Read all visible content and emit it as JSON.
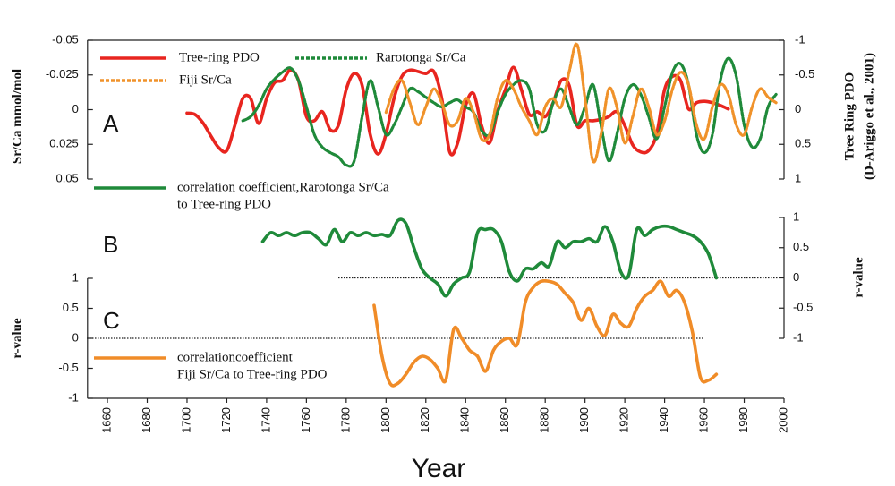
{
  "chart_data": [
    {
      "type": "line",
      "label": "A",
      "y_axis_side": "left",
      "ylabel": "Sr/Ca  mmol/mol",
      "y2label": [
        "Tree Ring PDO",
        "(D-Ariggo et al., 2001)"
      ],
      "ylim": [
        0.05,
        -0.05
      ],
      "yticks": [
        -0.05,
        -0.025,
        0,
        0.025,
        0.05
      ],
      "y2lim": [
        1,
        -1
      ],
      "y2ticks": [
        -1,
        -0.5,
        0,
        0.5,
        1
      ],
      "x": [
        1700,
        1704,
        1708,
        1712,
        1716,
        1720,
        1724,
        1728,
        1732,
        1736,
        1740,
        1744,
        1748,
        1752,
        1756,
        1760,
        1764,
        1768,
        1772,
        1776,
        1780,
        1784,
        1788,
        1792,
        1796,
        1800,
        1804,
        1808,
        1812,
        1816,
        1820,
        1824,
        1828,
        1832,
        1836,
        1840,
        1844,
        1848,
        1852,
        1856,
        1860,
        1864,
        1868,
        1872,
        1876,
        1880,
        1884,
        1888,
        1892,
        1896,
        1900,
        1904,
        1908,
        1912,
        1916,
        1920,
        1924,
        1928,
        1932,
        1936,
        1940,
        1944,
        1948,
        1952,
        1956,
        1960,
        1964,
        1968,
        1972,
        1976,
        1980,
        1984,
        1988,
        1992,
        1996
      ],
      "series": [
        {
          "name": "Tree-ring PDO",
          "color": "#e8251f",
          "style": "solid",
          "axis": "y2",
          "values": [
            0.05,
            0.07,
            0.19,
            0.38,
            0.55,
            0.59,
            0.23,
            -0.16,
            -0.16,
            0.2,
            -0.16,
            -0.39,
            -0.42,
            -0.57,
            -0.42,
            0.1,
            0.16,
            0.03,
            0.29,
            0.23,
            -0.29,
            -0.52,
            -0.35,
            0.35,
            0.64,
            0.35,
            -0.16,
            -0.48,
            -0.57,
            -0.55,
            -0.52,
            -0.55,
            -0.16,
            0.61,
            0.48,
            -0.06,
            -0.23,
            0.23,
            0.48,
            0.03,
            -0.29,
            -0.61,
            -0.29,
            0.07,
            0.03,
            0.1,
            -0.1,
            -0.42,
            -0.35,
            0.23,
            0.16,
            0.16,
            0.14,
            0.1,
            0.03,
            0.23,
            0.51,
            0.61,
            0.59,
            0.35,
            -0.29,
            -0.48,
            -0.42,
            -0.01,
            -0.1,
            -0.12,
            -0.1,
            -0.06,
            -0.01,
            null,
            null,
            null,
            null,
            null,
            null
          ]
        },
        {
          "name": "Rarotonga Sr/Ca",
          "color": "#1f8a3a",
          "style": "dashed",
          "values": [
            null,
            null,
            null,
            null,
            null,
            null,
            null,
            0.008,
            0.005,
            -0.003,
            -0.015,
            -0.022,
            -0.027,
            -0.03,
            -0.021,
            -0.002,
            0.018,
            0.027,
            0.031,
            0.034,
            0.04,
            0.037,
            0.005,
            -0.021,
            -0.002,
            0.018,
            0.011,
            -0.002,
            -0.015,
            -0.013,
            -0.009,
            -0.005,
            -0.002,
            -0.005,
            -0.007,
            -0.002,
            0.002,
            0.015,
            0.018,
            0.002,
            -0.011,
            -0.018,
            -0.021,
            -0.015,
            0.011,
            0.015,
            -0.005,
            -0.015,
            -0.002,
            0.011,
            -0.002,
            -0.018,
            0.011,
            0.037,
            0.018,
            -0.008,
            -0.018,
            -0.011,
            0.005,
            0.021,
            -0.002,
            -0.027,
            -0.033,
            -0.018,
            0.018,
            0.031,
            0.018,
            -0.021,
            -0.037,
            -0.024,
            0.011,
            0.027,
            0.021,
            -0.002,
            -0.011
          ]
        },
        {
          "name": "Fiji Sr/Ca",
          "color": "#f0922a",
          "style": "dashed",
          "values": [
            null,
            null,
            null,
            null,
            null,
            null,
            null,
            null,
            null,
            null,
            null,
            null,
            null,
            null,
            null,
            null,
            null,
            null,
            null,
            null,
            null,
            null,
            null,
            null,
            null,
            0.002,
            -0.015,
            -0.021,
            -0.005,
            0.011,
            -0.002,
            -0.015,
            -0.005,
            0.011,
            0.008,
            -0.008,
            0.002,
            0.021,
            0.018,
            -0.008,
            -0.021,
            -0.015,
            -0.002,
            0.008,
            0.018,
            -0.002,
            -0.008,
            -0.002,
            -0.027,
            -0.047,
            -0.008,
            0.037,
            0.018,
            -0.015,
            -0.002,
            0.024,
            0.005,
            -0.015,
            -0.002,
            0.018,
            0.008,
            -0.015,
            -0.027,
            -0.018,
            0.011,
            0.021,
            -0.002,
            -0.018,
            -0.011,
            0.011,
            0.018,
            -0.002,
            -0.015,
            -0.009,
            -0.005
          ]
        }
      ]
    },
    {
      "type": "line",
      "label": "B",
      "y_axis_side": "right",
      "ylabel": "r-value",
      "ylim": [
        -1,
        1
      ],
      "yticks": [
        1,
        0.5,
        0,
        -0.5,
        -1
      ],
      "x": [
        1738,
        1742,
        1746,
        1750,
        1754,
        1758,
        1762,
        1766,
        1770,
        1774,
        1778,
        1782,
        1786,
        1790,
        1794,
        1798,
        1802,
        1806,
        1810,
        1814,
        1818,
        1822,
        1826,
        1830,
        1834,
        1838,
        1842,
        1846,
        1850,
        1854,
        1858,
        1862,
        1866,
        1870,
        1874,
        1878,
        1882,
        1886,
        1890,
        1894,
        1898,
        1902,
        1906,
        1910,
        1914,
        1918,
        1922,
        1926,
        1930,
        1934,
        1938,
        1942,
        1946,
        1950,
        1954,
        1958,
        1962,
        1966
      ],
      "series": [
        {
          "name": [
            "correlation coefficient,Rarotonga Sr/Ca",
            "to Tree-ring PDO"
          ],
          "color": "#1f8a3a",
          "style": "solid",
          "values": [
            0.6,
            0.75,
            0.7,
            0.75,
            0.7,
            0.75,
            0.75,
            0.65,
            0.55,
            0.8,
            0.6,
            0.75,
            0.7,
            0.75,
            0.7,
            0.72,
            0.7,
            0.95,
            0.9,
            0.5,
            0.15,
            0.0,
            -0.1,
            -0.3,
            -0.1,
            0.0,
            0.1,
            0.75,
            0.8,
            0.8,
            0.6,
            0.1,
            -0.05,
            0.15,
            0.15,
            0.25,
            0.2,
            0.6,
            0.5,
            0.6,
            0.6,
            0.65,
            0.6,
            0.85,
            0.6,
            0.1,
            0.05,
            0.8,
            0.7,
            0.8,
            0.85,
            0.85,
            0.8,
            0.75,
            0.7,
            0.6,
            0.4,
            0.0
          ]
        }
      ]
    },
    {
      "type": "line",
      "label": "C",
      "y_axis_side": "left",
      "ylabel": "r-value",
      "xlabel": "Year",
      "xlim": [
        1650,
        2000
      ],
      "xticks": [
        1660,
        1680,
        1700,
        1720,
        1740,
        1760,
        1780,
        1800,
        1820,
        1840,
        1860,
        1880,
        1900,
        1920,
        1940,
        1960,
        1980,
        2000
      ],
      "ylim": [
        -1,
        1
      ],
      "yticks": [
        1,
        0.5,
        0,
        -0.5,
        -1
      ],
      "x": [
        1794,
        1798,
        1802,
        1806,
        1810,
        1814,
        1818,
        1822,
        1826,
        1830,
        1834,
        1838,
        1842,
        1846,
        1850,
        1854,
        1858,
        1862,
        1866,
        1870,
        1874,
        1878,
        1882,
        1886,
        1890,
        1894,
        1898,
        1902,
        1906,
        1910,
        1914,
        1918,
        1922,
        1926,
        1930,
        1934,
        1938,
        1942,
        1946,
        1950,
        1954,
        1958,
        1962,
        1966
      ],
      "series": [
        {
          "name": [
            "correlationcoefficient",
            "Fiji Sr/Ca to Tree-ring PDO"
          ],
          "color": "#f08c28",
          "style": "solid",
          "values": [
            0.55,
            -0.3,
            -0.75,
            -0.75,
            -0.6,
            -0.4,
            -0.3,
            -0.35,
            -0.5,
            -0.7,
            0.15,
            0.0,
            -0.2,
            -0.3,
            -0.55,
            -0.2,
            -0.05,
            0.0,
            -0.1,
            0.6,
            0.85,
            0.95,
            0.95,
            0.9,
            0.75,
            0.6,
            0.3,
            0.5,
            0.2,
            0.05,
            0.4,
            0.25,
            0.2,
            0.5,
            0.7,
            0.8,
            0.95,
            0.7,
            0.8,
            0.6,
            0.1,
            -0.65,
            -0.7,
            -0.6
          ]
        }
      ]
    }
  ]
}
